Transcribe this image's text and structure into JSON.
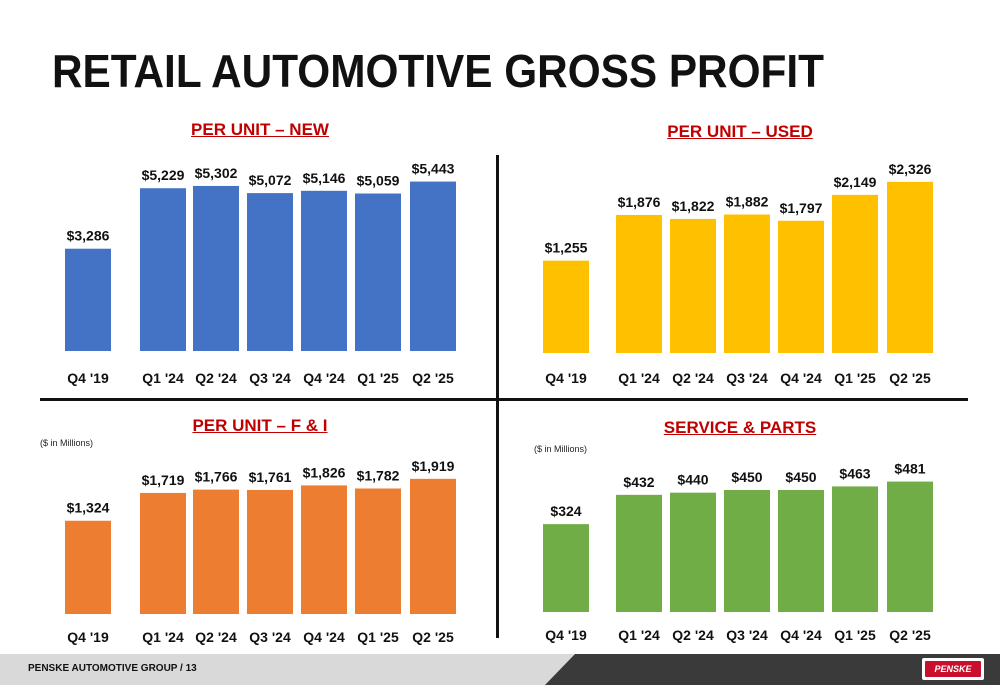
{
  "title": "RETAIL AUTOMOTIVE GROSS PROFIT",
  "footer": {
    "text": "PENSKE AUTOMOTIVE GROUP  /  13",
    "logo": "PENSKE"
  },
  "chart_data": [
    {
      "type": "bar",
      "title": "PER UNIT – NEW",
      "note": "",
      "color": "#4472c4",
      "categories": [
        "Q4 '19",
        "Q1 '24",
        "Q2 '24",
        "Q3 '24",
        "Q4 '24",
        "Q1 '25",
        "Q2 '25"
      ],
      "values": [
        3286,
        5229,
        5302,
        5072,
        5146,
        5059,
        5443
      ],
      "labels": [
        "$3,286",
        "$5,229",
        "$5,302",
        "$5,072",
        "$5,146",
        "$5,059",
        "$5,443"
      ],
      "ylim": [
        0,
        6200
      ]
    },
    {
      "type": "bar",
      "title": "PER UNIT – USED",
      "note": "",
      "color": "#ffc000",
      "categories": [
        "Q4 '19",
        "Q1 '24",
        "Q2 '24",
        "Q3 '24",
        "Q4 '24",
        "Q1 '25",
        "Q2 '25"
      ],
      "values": [
        1255,
        1876,
        1822,
        1882,
        1797,
        2149,
        2326
      ],
      "labels": [
        "$1,255",
        "$1,876",
        "$1,822",
        "$1,882",
        "$1,797",
        "$2,149",
        "$2,326"
      ],
      "ylim": [
        0,
        2650
      ]
    },
    {
      "type": "bar",
      "title": "PER UNIT – F & I",
      "note": "($ in Millions)",
      "color": "#ed7d31",
      "categories": [
        "Q4 '19",
        "Q1 '24",
        "Q2 '24",
        "Q3 '24",
        "Q4 '24",
        "Q1 '25",
        "Q2 '25"
      ],
      "values": [
        1324,
        1719,
        1766,
        1761,
        1826,
        1782,
        1919
      ],
      "labels": [
        "$1,324",
        "$1,719",
        "$1,766",
        "$1,761",
        "$1,826",
        "$1,782",
        "$1,919"
      ],
      "ylim": [
        0,
        2300
      ]
    },
    {
      "type": "bar",
      "title": "SERVICE & PARTS",
      "note": "($ in Millions)",
      "color": "#70ad47",
      "categories": [
        "Q4 '19",
        "Q1 '24",
        "Q2 '24",
        "Q3 '24",
        "Q4 '24",
        "Q1 '25",
        "Q2 '25"
      ],
      "values": [
        324,
        432,
        440,
        450,
        450,
        463,
        481
      ],
      "labels": [
        "$324",
        "$432",
        "$440",
        "$450",
        "$450",
        "$463",
        "$481"
      ],
      "ylim": [
        0,
        590
      ]
    }
  ]
}
